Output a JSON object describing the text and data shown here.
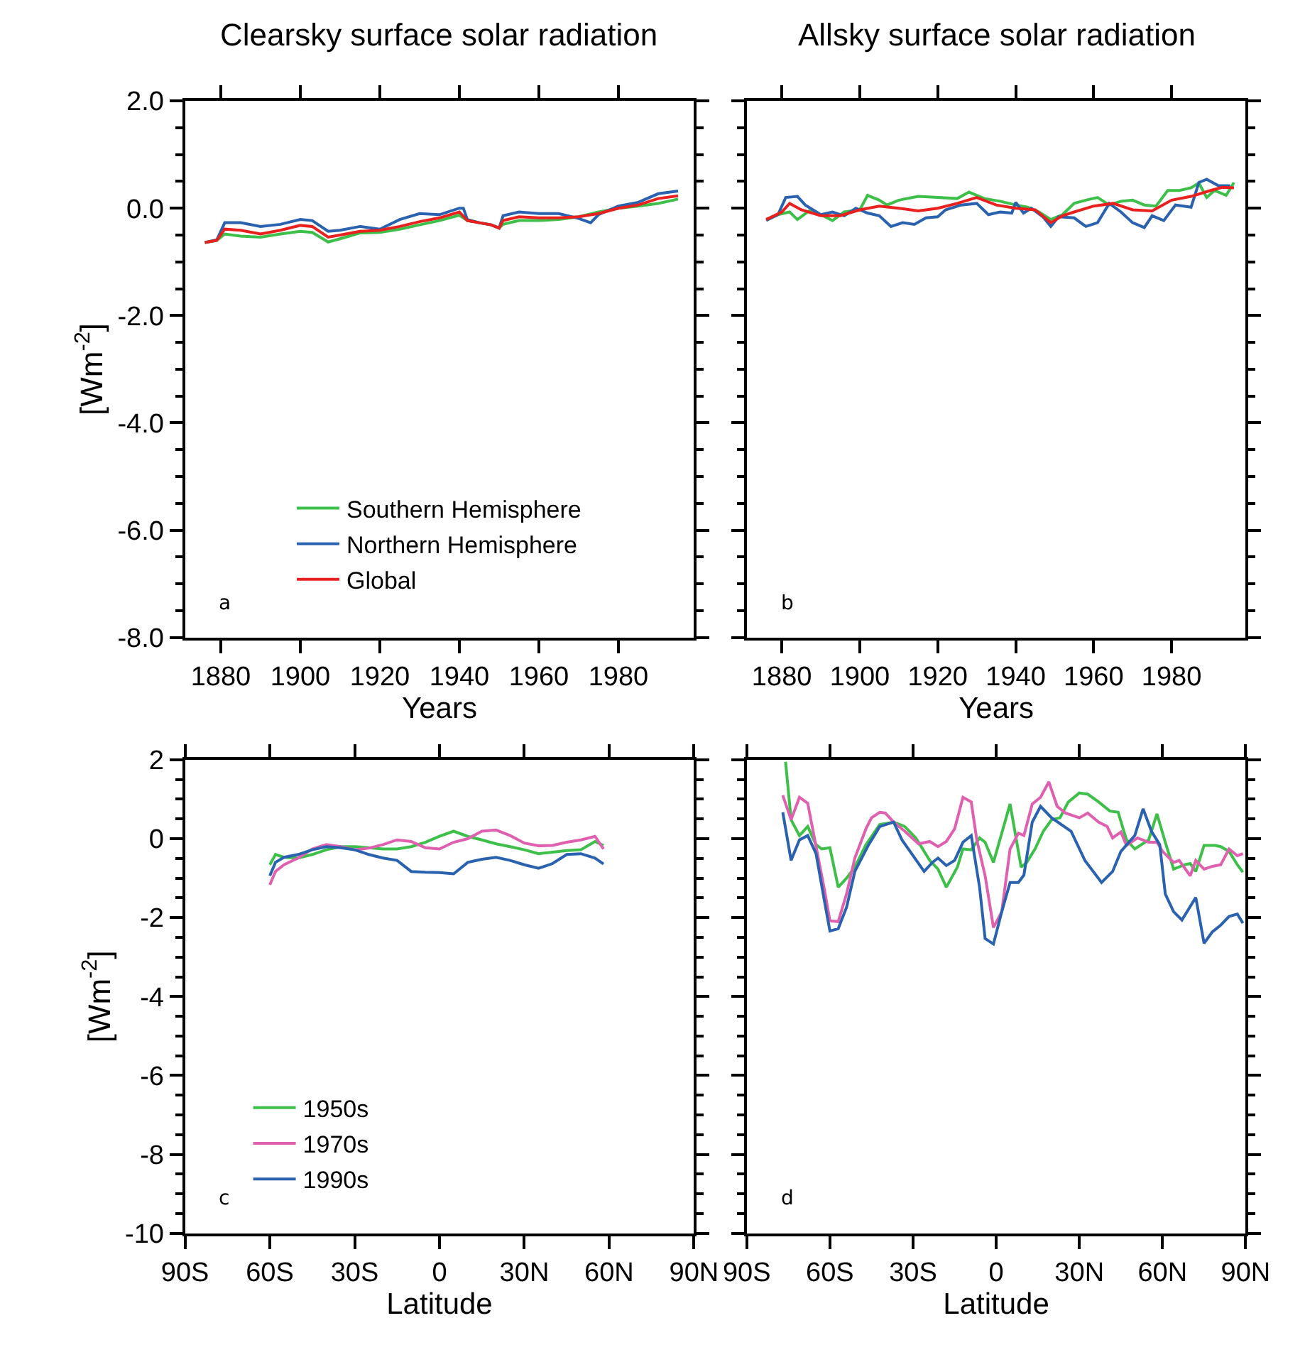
{
  "chart_data": [
    {
      "type": "line",
      "title": "Clearsky surface solar radiation",
      "xlabel": "Years",
      "ylabel": "[Wm$^{-2}$]",
      "xlim": [
        1871,
        1999
      ],
      "xticks": [
        1880,
        1900,
        1920,
        1940,
        1960,
        1980
      ],
      "ylim": [
        -8,
        2
      ],
      "yticks": [
        {
          "value": 2,
          "label": "2.0"
        },
        {
          "value": 0,
          "label": "0.0"
        },
        {
          "value": -2,
          "label": "-2.0"
        },
        {
          "value": -4,
          "label": "-4.0"
        },
        {
          "value": -6,
          "label": "-6.0"
        },
        {
          "value": -8,
          "label": "-8.0"
        }
      ],
      "legend": "bottom",
      "annotations": [
        "a"
      ],
      "series": [
        {
          "name": "Southern Hemisphere",
          "color": "#3dbf4a",
          "x": [
            1876,
            1879,
            1881,
            1885,
            1890,
            1895,
            1900,
            1903,
            1907,
            1910,
            1915,
            1920,
            1925,
            1930,
            1935,
            1940,
            1942,
            1945,
            1948,
            1950,
            1951,
            1955,
            1960,
            1965,
            1970,
            1975,
            1980,
            1985,
            1990,
            1995
          ],
          "values": [
            -0.64,
            -0.6,
            -0.48,
            -0.52,
            -0.54,
            -0.48,
            -0.43,
            -0.45,
            -0.63,
            -0.57,
            -0.46,
            -0.45,
            -0.39,
            -0.31,
            -0.23,
            -0.13,
            -0.23,
            -0.27,
            -0.31,
            -0.37,
            -0.3,
            -0.23,
            -0.23,
            -0.21,
            -0.16,
            -0.07,
            0.0,
            0.04,
            0.09,
            0.17
          ]
        },
        {
          "name": "Northern Hemisphere",
          "color": "#2a62b0",
          "x": [
            1876,
            1879,
            1881,
            1885,
            1890,
            1895,
            1900,
            1903,
            1907,
            1910,
            1915,
            1920,
            1925,
            1930,
            1935,
            1940,
            1941,
            1942,
            1945,
            1948,
            1950,
            1951,
            1955,
            1960,
            1965,
            1970,
            1973,
            1975,
            1980,
            1985,
            1990,
            1995
          ],
          "values": [
            -0.64,
            -0.59,
            -0.27,
            -0.27,
            -0.34,
            -0.3,
            -0.21,
            -0.23,
            -0.43,
            -0.41,
            -0.34,
            -0.39,
            -0.21,
            -0.1,
            -0.12,
            0.0,
            0.0,
            -0.21,
            -0.27,
            -0.31,
            -0.37,
            -0.14,
            -0.07,
            -0.1,
            -0.1,
            -0.19,
            -0.27,
            -0.12,
            0.04,
            0.11,
            0.27,
            0.32
          ]
        },
        {
          "name": "Global",
          "color": "#e8201e",
          "x": [
            1876,
            1879,
            1881,
            1885,
            1890,
            1895,
            1900,
            1903,
            1907,
            1910,
            1915,
            1920,
            1925,
            1930,
            1935,
            1940,
            1942,
            1945,
            1948,
            1950,
            1951,
            1955,
            1960,
            1965,
            1970,
            1975,
            1980,
            1985,
            1990,
            1995
          ],
          "values": [
            -0.64,
            -0.6,
            -0.39,
            -0.41,
            -0.48,
            -0.41,
            -0.32,
            -0.34,
            -0.54,
            -0.5,
            -0.43,
            -0.41,
            -0.34,
            -0.25,
            -0.18,
            -0.07,
            -0.23,
            -0.27,
            -0.31,
            -0.37,
            -0.23,
            -0.16,
            -0.18,
            -0.18,
            -0.16,
            -0.1,
            0.0,
            0.06,
            0.18,
            0.23
          ]
        }
      ]
    },
    {
      "type": "line",
      "title": "Allsky surface solar radiation",
      "xlabel": "Years",
      "xlim": [
        1871,
        1999
      ],
      "xticks": [
        1880,
        1900,
        1920,
        1940,
        1960,
        1980
      ],
      "ylim": [
        -8,
        2
      ],
      "yticks": [
        2,
        0,
        -2,
        -4,
        -6,
        -8
      ],
      "tick_labels": "x",
      "annotations": [
        "b"
      ],
      "series": [
        {
          "color": "#3dbf4a",
          "x": [
            1876,
            1879,
            1882,
            1884,
            1887,
            1890,
            1893,
            1896,
            1900,
            1902,
            1905,
            1907,
            1910,
            1915,
            1920,
            1925,
            1928,
            1932,
            1936,
            1940,
            1943,
            1946,
            1949,
            1952,
            1955,
            1958,
            1961,
            1964,
            1967,
            1970,
            1973,
            1976,
            1979,
            1982,
            1985,
            1987,
            1989,
            1991,
            1994,
            1996
          ],
          "values": [
            -0.21,
            -0.12,
            -0.07,
            -0.21,
            -0.05,
            -0.12,
            -0.23,
            -0.07,
            -0.03,
            0.24,
            0.15,
            0.06,
            0.15,
            0.22,
            0.2,
            0.18,
            0.3,
            0.18,
            0.13,
            0.06,
            0.02,
            -0.07,
            -0.21,
            -0.12,
            0.09,
            0.15,
            0.2,
            0.06,
            0.13,
            0.15,
            0.06,
            0.04,
            0.33,
            0.33,
            0.38,
            0.47,
            0.2,
            0.33,
            0.24,
            0.48
          ]
        },
        {
          "color": "#2a62b0",
          "x": [
            1876,
            1879,
            1881,
            1884,
            1886,
            1890,
            1893,
            1896,
            1899,
            1902,
            1905,
            1908,
            1911,
            1914,
            1917,
            1920,
            1922,
            1926,
            1930,
            1933,
            1936,
            1939,
            1940,
            1942,
            1944,
            1947,
            1949,
            1951,
            1955,
            1958,
            1961,
            1964,
            1967,
            1970,
            1973,
            1975,
            1978,
            1981,
            1985,
            1987,
            1989,
            1992,
            1995
          ],
          "values": [
            -0.23,
            -0.12,
            0.2,
            0.22,
            0.06,
            -0.12,
            -0.07,
            -0.14,
            0.0,
            -0.09,
            -0.14,
            -0.34,
            -0.27,
            -0.3,
            -0.18,
            -0.16,
            -0.03,
            0.06,
            0.09,
            -0.12,
            -0.07,
            -0.09,
            0.11,
            -0.09,
            0.0,
            -0.16,
            -0.34,
            -0.16,
            -0.18,
            -0.34,
            -0.27,
            0.09,
            -0.07,
            -0.27,
            -0.36,
            -0.14,
            -0.23,
            0.06,
            0.02,
            0.48,
            0.54,
            0.42,
            0.42
          ]
        },
        {
          "color": "#e8201e",
          "x": [
            1876,
            1880,
            1882,
            1885,
            1890,
            1895,
            1900,
            1905,
            1910,
            1915,
            1920,
            1925,
            1930,
            1935,
            1940,
            1945,
            1949,
            1952,
            1955,
            1960,
            1965,
            1970,
            1975,
            1980,
            1985,
            1990,
            1993,
            1996
          ],
          "values": [
            -0.21,
            -0.07,
            0.09,
            -0.03,
            -0.14,
            -0.14,
            -0.03,
            0.04,
            0.0,
            -0.05,
            0.0,
            0.09,
            0.2,
            0.06,
            0.0,
            -0.03,
            -0.27,
            -0.14,
            -0.07,
            0.04,
            0.09,
            -0.03,
            -0.05,
            0.15,
            0.22,
            0.33,
            0.39,
            0.38
          ]
        }
      ]
    },
    {
      "type": "line",
      "xlabel": "Latitude",
      "ylabel": "[Wm$^{-2}$]",
      "xlim": [
        -90,
        90
      ],
      "xticks": [
        {
          "value": -90,
          "label": "90S"
        },
        {
          "value": -60,
          "label": "60S"
        },
        {
          "value": -30,
          "label": "30S"
        },
        0,
        {
          "value": 30,
          "label": "30N"
        },
        {
          "value": 60,
          "label": "60N"
        },
        {
          "value": 90,
          "label": "90N"
        }
      ],
      "ylim": [
        -10,
        2
      ],
      "yticks": [
        -10,
        -8,
        -6,
        -4,
        -2,
        0,
        2
      ],
      "legend": "bottom left",
      "annotations": [
        "c"
      ],
      "series": [
        {
          "name": "1950s",
          "color": "#3dbf4a",
          "x": [
            -60,
            -58,
            -55,
            -50,
            -45,
            -40,
            -35,
            -30,
            -25,
            -20,
            -15,
            -10,
            -5,
            0,
            5,
            10,
            15,
            20,
            25,
            30,
            35,
            40,
            45,
            50,
            55,
            58
          ],
          "values": [
            -0.66,
            -0.4,
            -0.47,
            -0.49,
            -0.4,
            -0.28,
            -0.2,
            -0.2,
            -0.23,
            -0.26,
            -0.26,
            -0.2,
            -0.09,
            0.06,
            0.19,
            0.06,
            -0.03,
            -0.13,
            -0.2,
            -0.28,
            -0.38,
            -0.34,
            -0.3,
            -0.28,
            -0.07,
            -0.17
          ]
        },
        {
          "name": "1970s",
          "color": "#e060b0",
          "x": [
            -60,
            -58,
            -55,
            -50,
            -45,
            -40,
            -35,
            -30,
            -25,
            -20,
            -15,
            -10,
            -5,
            0,
            5,
            10,
            15,
            20,
            25,
            30,
            35,
            40,
            45,
            50,
            55,
            58
          ],
          "values": [
            -1.17,
            -0.83,
            -0.66,
            -0.49,
            -0.26,
            -0.15,
            -0.2,
            -0.28,
            -0.24,
            -0.15,
            -0.03,
            -0.07,
            -0.23,
            -0.26,
            -0.09,
            0.0,
            0.19,
            0.22,
            0.08,
            -0.11,
            -0.18,
            -0.17,
            -0.09,
            -0.03,
            0.06,
            -0.26
          ]
        },
        {
          "name": "1990s",
          "color": "#2a62b0",
          "x": [
            -60,
            -58,
            -55,
            -50,
            -45,
            -40,
            -35,
            -30,
            -25,
            -20,
            -15,
            -10,
            -5,
            0,
            5,
            10,
            15,
            20,
            25,
            30,
            35,
            40,
            45,
            50,
            55,
            58
          ],
          "values": [
            -0.94,
            -0.6,
            -0.47,
            -0.4,
            -0.28,
            -0.2,
            -0.23,
            -0.28,
            -0.4,
            -0.49,
            -0.55,
            -0.83,
            -0.85,
            -0.86,
            -0.89,
            -0.6,
            -0.52,
            -0.47,
            -0.55,
            -0.66,
            -0.75,
            -0.63,
            -0.4,
            -0.38,
            -0.49,
            -0.64
          ]
        }
      ]
    },
    {
      "type": "line",
      "xlabel": "Latitude",
      "xlim": [
        -90,
        90
      ],
      "xticks": [
        {
          "value": -90,
          "label": "90S"
        },
        {
          "value": -60,
          "label": "60S"
        },
        {
          "value": -30,
          "label": "30S"
        },
        0,
        {
          "value": 30,
          "label": "30N"
        },
        {
          "value": 60,
          "label": "60N"
        },
        {
          "value": 90,
          "label": "90N"
        }
      ],
      "ylim": [
        -10,
        2
      ],
      "yticks": [
        -10,
        -8,
        -6,
        -4,
        -2,
        0,
        2
      ],
      "tick_labels": "x",
      "annotations": [
        "d"
      ],
      "series": [
        {
          "color": "#3dbf4a",
          "x": [
            -76,
            -74,
            -71,
            -68,
            -65,
            -63,
            -60,
            -57,
            -54,
            -51,
            -47,
            -42,
            -37,
            -33,
            -29,
            -24,
            -21,
            -18,
            -14,
            -12,
            -9,
            -6,
            -4,
            -1,
            2,
            5,
            7,
            9,
            11,
            14,
            17,
            20,
            23,
            26,
            30,
            33,
            37,
            41,
            44,
            47,
            50,
            55,
            58,
            61,
            64,
            68,
            70,
            72,
            75,
            79,
            81,
            84,
            87,
            89
          ],
          "values": [
            1.95,
            0.48,
            0.08,
            0.31,
            -0.15,
            -0.26,
            -0.23,
            -1.23,
            -1.0,
            -0.72,
            -0.15,
            0.36,
            0.42,
            0.31,
            0.02,
            -0.55,
            -0.77,
            -1.23,
            -0.72,
            -0.26,
            -0.28,
            0.02,
            -0.09,
            -0.6,
            0.14,
            0.88,
            0.08,
            -0.72,
            -0.6,
            -0.26,
            0.19,
            0.48,
            0.53,
            0.93,
            1.16,
            1.13,
            0.93,
            0.7,
            0.67,
            -0.03,
            -0.26,
            -0.03,
            0.63,
            -0.09,
            -0.77,
            -0.66,
            -0.63,
            -0.83,
            -0.17,
            -0.17,
            -0.2,
            -0.32,
            -0.66,
            -0.85
          ]
        },
        {
          "color": "#e060b0",
          "x": [
            -77,
            -74,
            -71,
            -68,
            -65,
            -62,
            -60,
            -57,
            -54,
            -51,
            -47,
            -45,
            -42,
            -40,
            -37,
            -33,
            -28,
            -24,
            -21,
            -18,
            -15,
            -12,
            -9,
            -7,
            -4,
            -1,
            2,
            5,
            8,
            10,
            13,
            16,
            19,
            22,
            25,
            30,
            33,
            37,
            40,
            42,
            45,
            47,
            51,
            55,
            58,
            60,
            64,
            66,
            70,
            72,
            75,
            78,
            81,
            84,
            87,
            89
          ],
          "values": [
            1.1,
            0.48,
            1.05,
            0.9,
            -0.2,
            -1.28,
            -2.08,
            -2.1,
            -1.4,
            -0.49,
            0.25,
            0.53,
            0.67,
            0.65,
            0.42,
            0.19,
            -0.13,
            -0.07,
            -0.2,
            -0.07,
            0.25,
            1.05,
            0.93,
            -0.03,
            -0.94,
            -2.25,
            -1.85,
            -0.26,
            0.14,
            0.08,
            0.88,
            1.05,
            1.44,
            0.82,
            0.65,
            0.53,
            0.65,
            0.42,
            0.31,
            0.02,
            0.17,
            -0.17,
            0.02,
            -0.09,
            -0.09,
            -0.32,
            -0.6,
            -0.55,
            -0.94,
            -0.55,
            -0.77,
            -0.7,
            -0.66,
            -0.26,
            -0.43,
            -0.38
          ]
        },
        {
          "color": "#2a62b0",
          "x": [
            -77,
            -74,
            -71,
            -68,
            -65,
            -62,
            -60,
            -57,
            -54,
            -51,
            -46,
            -42,
            -37,
            -34,
            -30,
            -26,
            -23,
            -21,
            -18,
            -15,
            -12,
            -9,
            -6,
            -4,
            -1,
            2,
            5,
            8,
            10,
            13,
            16,
            20,
            27,
            32,
            38,
            42,
            45,
            50,
            53,
            56,
            59,
            61,
            64,
            67,
            72,
            75,
            78,
            81,
            84,
            87,
            89
          ],
          "values": [
            0.67,
            -0.55,
            -0.03,
            0.08,
            -0.38,
            -1.57,
            -2.34,
            -2.28,
            -1.74,
            -0.83,
            -0.15,
            0.31,
            0.42,
            -0.03,
            -0.43,
            -0.83,
            -0.6,
            -0.49,
            -0.68,
            -0.55,
            -0.09,
            0.08,
            -1.23,
            -2.53,
            -2.67,
            -1.85,
            -1.11,
            -1.11,
            -0.92,
            0.42,
            0.82,
            0.53,
            0.19,
            -0.55,
            -1.11,
            -0.83,
            -0.32,
            0.08,
            0.76,
            0.19,
            -0.15,
            -1.4,
            -1.85,
            -2.06,
            -1.49,
            -2.65,
            -2.36,
            -2.19,
            -1.97,
            -1.91,
            -2.14
          ]
        }
      ]
    }
  ]
}
